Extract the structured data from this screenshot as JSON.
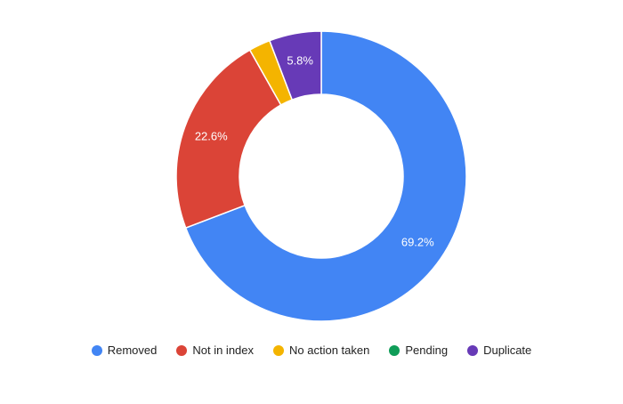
{
  "chart_data": {
    "type": "pie",
    "donut": true,
    "legend_position": "bottom",
    "categories": [
      "Removed",
      "Not in index",
      "No action taken",
      "Pending",
      "Duplicate"
    ],
    "values": [
      69.2,
      22.6,
      2.4,
      0.0,
      5.8
    ],
    "labels": [
      "69.2%",
      "22.6%",
      "",
      "",
      "5.8%"
    ],
    "colors": [
      "#4285f4",
      "#db4437",
      "#f4b400",
      "#0f9d58",
      "#673ab7"
    ]
  }
}
